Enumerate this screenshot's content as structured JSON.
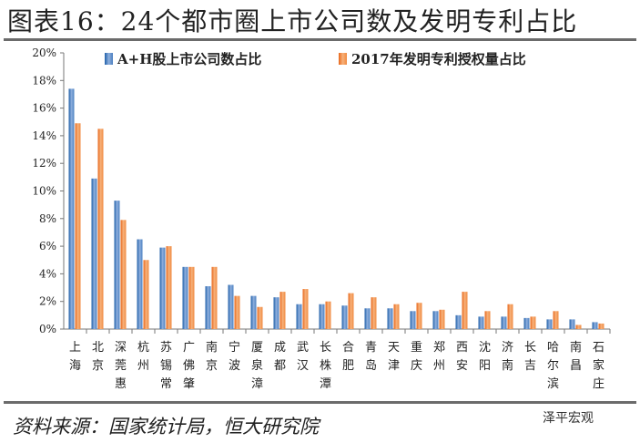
{
  "title": "图表16：24个都市圈上市公司数及发明专利占比",
  "source": "资料来源：国家统计局，恒大研究院",
  "watermark": "泽平宏观",
  "chart_data": {
    "type": "bar",
    "title": "图表16：24个都市圈上市公司数及发明专利占比",
    "categories": [
      "上海",
      "北京",
      "深莞惠",
      "杭州",
      "苏锡常",
      "广佛肇",
      "南京",
      "宁波",
      "厦泉漳",
      "成都",
      "武汉",
      "长株潭",
      "合肥",
      "青岛",
      "天津",
      "重庆",
      "郑州",
      "西安",
      "沈阳",
      "济南",
      "长吉",
      "哈尔滨",
      "南昌",
      "石家庄"
    ],
    "series": [
      {
        "name": "A+H股上市公司数占比",
        "color": "#2e6db4",
        "values": [
          17.4,
          10.9,
          9.3,
          6.5,
          5.9,
          4.5,
          3.1,
          3.2,
          2.4,
          2.3,
          1.8,
          1.8,
          1.7,
          1.5,
          1.5,
          1.3,
          1.3,
          1.0,
          0.9,
          0.9,
          0.8,
          0.7,
          0.7,
          0.5
        ]
      },
      {
        "name": "2017年发明专利授权量占比",
        "color": "#ee7d31",
        "values": [
          14.9,
          14.5,
          7.9,
          5.0,
          6.0,
          4.5,
          4.5,
          2.4,
          1.6,
          2.7,
          2.9,
          2.0,
          2.6,
          2.3,
          1.8,
          1.9,
          1.4,
          2.7,
          1.3,
          1.8,
          0.9,
          1.3,
          0.3,
          0.4
        ]
      }
    ],
    "yticks": [
      "0%",
      "2%",
      "4%",
      "6%",
      "8%",
      "10%",
      "12%",
      "14%",
      "16%",
      "18%",
      "20%"
    ],
    "ylim": [
      0,
      20
    ],
    "yunit": "%",
    "legend": "top",
    "grid": false
  }
}
